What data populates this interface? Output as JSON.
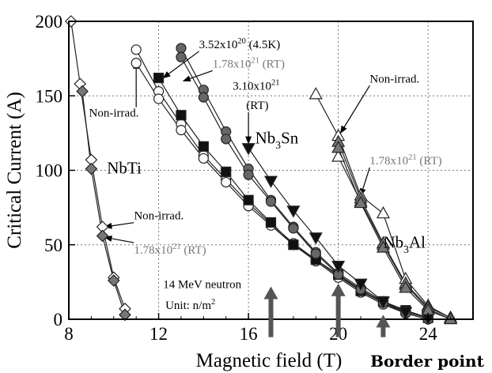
{
  "chart_data": {
    "type": "scatter",
    "title": "",
    "xlabel": "Magnetic field (T)",
    "ylabel": "Critical Current (A)",
    "xlim": [
      8,
      26
    ],
    "ylim": [
      0,
      200
    ],
    "xticks": [
      8,
      12,
      16,
      20,
      24
    ],
    "yticks": [
      0,
      50,
      100,
      150,
      200
    ],
    "grid": "dotted",
    "series": [
      {
        "marker": "diamond",
        "fill": "#ffffff",
        "x": [
          8.1,
          8.5,
          9,
          9.5,
          10,
          10.5
        ],
        "y": [
          200,
          158,
          107,
          62,
          28,
          7
        ]
      },
      {
        "marker": "diamond",
        "fill": "#777777",
        "x": [
          8.6,
          9,
          9.5,
          10,
          10.5
        ],
        "y": [
          153,
          101,
          56,
          26,
          3
        ]
      },
      {
        "marker": "circle",
        "fill": "#ffffff",
        "x": [
          11,
          12,
          13,
          14,
          15,
          16,
          17,
          18,
          19,
          20,
          21,
          22,
          23,
          24
        ],
        "y": [
          181,
          153,
          131,
          110,
          94,
          78,
          64,
          51,
          40,
          29,
          19,
          11,
          5,
          1
        ]
      },
      {
        "marker": "circle",
        "fill": "#ffffff",
        "x": [
          11,
          12,
          13,
          14,
          15,
          16,
          17,
          18,
          19,
          20,
          21,
          22,
          23,
          24
        ],
        "y": [
          172,
          148,
          127,
          108,
          92,
          76,
          63,
          50,
          39,
          28,
          18,
          10,
          4,
          0
        ]
      },
      {
        "marker": "square",
        "fill": "#111111",
        "x": [
          12,
          13,
          14,
          15,
          16,
          17,
          18,
          19,
          20,
          21,
          22,
          23,
          24
        ],
        "y": [
          162,
          137,
          116,
          99,
          80,
          65,
          50,
          40,
          30,
          19,
          12,
          6,
          1
        ]
      },
      {
        "marker": "circle",
        "fill": "#666666",
        "x": [
          13,
          14,
          15,
          16,
          17,
          18,
          19,
          20,
          21,
          22,
          23,
          24
        ],
        "y": [
          182,
          154,
          126,
          101,
          80,
          62,
          45,
          31,
          21,
          12,
          5,
          1
        ]
      },
      {
        "marker": "circle",
        "fill": "#666666",
        "x": [
          13,
          14,
          15,
          16,
          17,
          18,
          19,
          20,
          21,
          22,
          23,
          24
        ],
        "y": [
          176,
          149,
          121,
          97,
          79,
          61,
          44,
          30,
          20,
          11,
          4,
          0
        ]
      },
      {
        "marker": "triangle-down",
        "fill": "#111111",
        "x": [
          16,
          17,
          18,
          19,
          20,
          21,
          22,
          23,
          24
        ],
        "y": [
          115,
          93,
          73,
          55,
          36,
          24,
          12,
          5,
          1
        ]
      },
      {
        "marker": "triangle-up",
        "fill": "#ffffff",
        "x": [
          19,
          20,
          21,
          22,
          23,
          24,
          25
        ],
        "y": [
          151,
          123,
          83,
          71,
          27,
          9,
          1
        ]
      },
      {
        "marker": "triangle-up",
        "fill": "#ffffff",
        "x": [
          20,
          21,
          22,
          23,
          24,
          25
        ],
        "y": [
          109,
          79,
          50,
          23,
          7,
          0
        ]
      },
      {
        "marker": "triangle-up",
        "fill": "#777777",
        "x": [
          20,
          21,
          22,
          23,
          24,
          25
        ],
        "y": [
          119,
          81,
          51,
          24,
          8,
          1
        ]
      },
      {
        "marker": "triangle-up",
        "fill": "#777777",
        "x": [
          20,
          21,
          22,
          23,
          24,
          25
        ],
        "y": [
          115,
          78,
          48,
          21,
          6,
          0
        ]
      }
    ],
    "annotations": [
      {
        "id": "nbti",
        "text": "NbTi",
        "x": 9.7,
        "y": 98,
        "size": 21,
        "color": "#000000"
      },
      {
        "id": "nb3sn",
        "text": "Nb",
        "sub": "3",
        "after": "Sn",
        "x": 16.3,
        "y": 118,
        "size": 21,
        "color": "#000000"
      },
      {
        "id": "nb3al",
        "text": "Nb",
        "sub": "3",
        "after": "Al",
        "x": 22.0,
        "y": 48,
        "size": 21,
        "color": "#000000"
      },
      {
        "id": "ann-35",
        "text": "3.52x10",
        "sup": "20",
        "after": " (4.5K)",
        "x": 13.8,
        "y": 182,
        "size": 15,
        "color": "#000000",
        "arrow_to": [
          12.2,
          162
        ]
      },
      {
        "id": "ann-178-sn",
        "text": "1.78x10",
        "sup": "21",
        "after": " (RT)",
        "x": 14.4,
        "y": 169,
        "size": 15,
        "color": "#777777",
        "arrow_to": [
          13.1,
          160
        ]
      },
      {
        "id": "ann-310",
        "text": "3.10x10",
        "sup": "21",
        "x": 15.3,
        "y": 154,
        "size": 15,
        "color": "#000000"
      },
      {
        "id": "ann-310-rt",
        "text": "(RT)",
        "x": 15.9,
        "y": 141,
        "size": 15,
        "color": "#000000",
        "arrow_to": [
          16.0,
          118
        ]
      },
      {
        "id": "ann-nonirr-sn",
        "text": "Non-irrad.",
        "x": 8.9,
        "y": 136,
        "size": 15,
        "color": "#000000",
        "arrow_to": [
          11.0,
          173
        ]
      },
      {
        "id": "ann-nonirr-al",
        "text": "Non-irrad.",
        "x": 21.4,
        "y": 159,
        "size": 15,
        "color": "#000000",
        "arrow_to": [
          20.1,
          125
        ]
      },
      {
        "id": "ann-178-al",
        "text": "1.78x10",
        "sup": "21",
        "after": " (RT)",
        "x": 21.4,
        "y": 104,
        "size": 15,
        "color": "#777777",
        "arrow_to": [
          21.0,
          83
        ]
      },
      {
        "id": "ann-nonirr-ti",
        "text": "Non-irrad.",
        "x": 10.9,
        "y": 67,
        "size": 15,
        "color": "#000000",
        "arrow_to": [
          9.6,
          62
        ]
      },
      {
        "id": "ann-178-ti",
        "text": "1.78x10",
        "sup": "21",
        "after": " (RT)",
        "x": 10.9,
        "y": 44,
        "size": 15,
        "color": "#777777",
        "arrow_to": [
          9.6,
          55
        ]
      },
      {
        "id": "ann-neutron",
        "text": "14 MeV neutron",
        "x": 12.2,
        "y": 21,
        "size": 15,
        "color": "#000000"
      },
      {
        "id": "ann-unit",
        "text": "Unit: n/m",
        "sup": "2",
        "x": 12.3,
        "y": 7,
        "size": 15,
        "color": "#000000"
      }
    ],
    "border_arrows": [
      {
        "x": 17,
        "y_from": -12,
        "y_to": 22
      },
      {
        "x": 20,
        "y_from": -12,
        "y_to": 24
      },
      {
        "x": 22,
        "y_from": -12,
        "y_to": 3
      }
    ],
    "border_label": "Border point"
  }
}
